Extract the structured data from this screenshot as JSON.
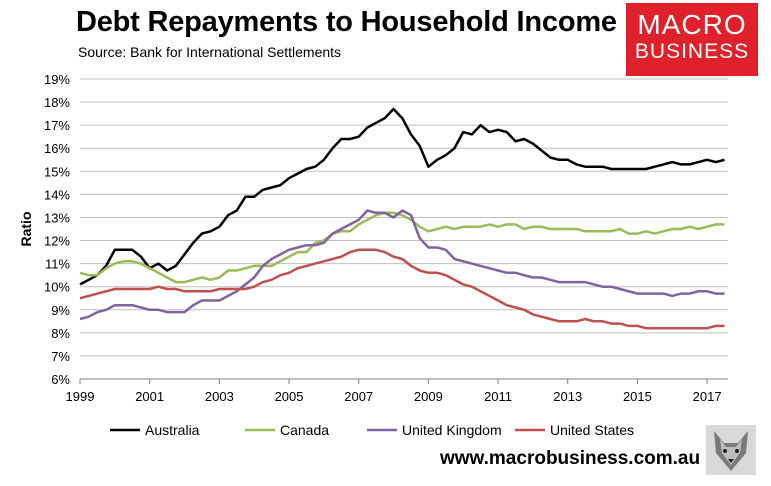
{
  "title": "Debt Repayments to Household Income",
  "subtitle": "Source: Bank for International Settlements",
  "logo": {
    "line1": "MACRO",
    "line2": "BUSINESS",
    "color": "#e0202a"
  },
  "footer_url": "www.macrobusiness.com.au",
  "chart_data": {
    "type": "line",
    "title": "Debt Repayments to Household Income",
    "xlabel": "",
    "ylabel": "Ratio",
    "xlim": [
      1999,
      2017.6
    ],
    "ylim": [
      6,
      19
    ],
    "x_ticks": [
      1999,
      2001,
      2003,
      2005,
      2007,
      2009,
      2011,
      2013,
      2015,
      2017
    ],
    "y_ticks": [
      "6%",
      "7%",
      "8%",
      "9%",
      "10%",
      "11%",
      "12%",
      "13%",
      "14%",
      "15%",
      "16%",
      "17%",
      "18%",
      "19%"
    ],
    "grid": "horizontal",
    "legend_position": "bottom",
    "series": [
      {
        "name": "Australia",
        "color": "#000000",
        "points": [
          [
            1999,
            10.1
          ],
          [
            1999.25,
            10.3
          ],
          [
            1999.5,
            10.5
          ],
          [
            1999.75,
            10.9
          ],
          [
            2000,
            11.6
          ],
          [
            2000.25,
            11.6
          ],
          [
            2000.5,
            11.6
          ],
          [
            2000.75,
            11.3
          ],
          [
            2001,
            10.8
          ],
          [
            2001.25,
            11.0
          ],
          [
            2001.5,
            10.7
          ],
          [
            2001.75,
            10.9
          ],
          [
            2002,
            11.4
          ],
          [
            2002.25,
            11.9
          ],
          [
            2002.5,
            12.3
          ],
          [
            2002.75,
            12.4
          ],
          [
            2003,
            12.6
          ],
          [
            2003.25,
            13.1
          ],
          [
            2003.5,
            13.3
          ],
          [
            2003.75,
            13.9
          ],
          [
            2004,
            13.9
          ],
          [
            2004.25,
            14.2
          ],
          [
            2004.5,
            14.3
          ],
          [
            2004.75,
            14.4
          ],
          [
            2005,
            14.7
          ],
          [
            2005.25,
            14.9
          ],
          [
            2005.5,
            15.1
          ],
          [
            2005.75,
            15.2
          ],
          [
            2006,
            15.5
          ],
          [
            2006.25,
            16.0
          ],
          [
            2006.5,
            16.4
          ],
          [
            2006.75,
            16.4
          ],
          [
            2007,
            16.5
          ],
          [
            2007.25,
            16.9
          ],
          [
            2007.5,
            17.1
          ],
          [
            2007.75,
            17.3
          ],
          [
            2008,
            17.7
          ],
          [
            2008.25,
            17.3
          ],
          [
            2008.5,
            16.6
          ],
          [
            2008.75,
            16.1
          ],
          [
            2009,
            15.2
          ],
          [
            2009.25,
            15.5
          ],
          [
            2009.5,
            15.7
          ],
          [
            2009.75,
            16.0
          ],
          [
            2010,
            16.7
          ],
          [
            2010.25,
            16.6
          ],
          [
            2010.5,
            17.0
          ],
          [
            2010.75,
            16.7
          ],
          [
            2011,
            16.8
          ],
          [
            2011.25,
            16.7
          ],
          [
            2011.5,
            16.3
          ],
          [
            2011.75,
            16.4
          ],
          [
            2012,
            16.2
          ],
          [
            2012.25,
            15.9
          ],
          [
            2012.5,
            15.6
          ],
          [
            2012.75,
            15.5
          ],
          [
            2013,
            15.5
          ],
          [
            2013.25,
            15.3
          ],
          [
            2013.5,
            15.2
          ],
          [
            2013.75,
            15.2
          ],
          [
            2014,
            15.2
          ],
          [
            2014.25,
            15.1
          ],
          [
            2014.5,
            15.1
          ],
          [
            2014.75,
            15.1
          ],
          [
            2015,
            15.1
          ],
          [
            2015.25,
            15.1
          ],
          [
            2015.5,
            15.2
          ],
          [
            2015.75,
            15.3
          ],
          [
            2016,
            15.4
          ],
          [
            2016.25,
            15.3
          ],
          [
            2016.5,
            15.3
          ],
          [
            2016.75,
            15.4
          ],
          [
            2017,
            15.5
          ],
          [
            2017.25,
            15.4
          ],
          [
            2017.5,
            15.5
          ]
        ]
      },
      {
        "name": "Canada",
        "color": "#9bbb59",
        "points": [
          [
            1999,
            10.6
          ],
          [
            1999.25,
            10.5
          ],
          [
            1999.5,
            10.5
          ],
          [
            1999.75,
            10.8
          ],
          [
            2000,
            11.0
          ],
          [
            2000.25,
            11.1
          ],
          [
            2000.5,
            11.1
          ],
          [
            2000.75,
            11.0
          ],
          [
            2001,
            10.8
          ],
          [
            2001.25,
            10.6
          ],
          [
            2001.5,
            10.4
          ],
          [
            2001.75,
            10.2
          ],
          [
            2002,
            10.2
          ],
          [
            2002.25,
            10.3
          ],
          [
            2002.5,
            10.4
          ],
          [
            2002.75,
            10.3
          ],
          [
            2003,
            10.4
          ],
          [
            2003.25,
            10.7
          ],
          [
            2003.5,
            10.7
          ],
          [
            2003.75,
            10.8
          ],
          [
            2004,
            10.9
          ],
          [
            2004.25,
            10.9
          ],
          [
            2004.5,
            10.9
          ],
          [
            2004.75,
            11.1
          ],
          [
            2005,
            11.3
          ],
          [
            2005.25,
            11.5
          ],
          [
            2005.5,
            11.5
          ],
          [
            2005.75,
            11.9
          ],
          [
            2006,
            12.0
          ],
          [
            2006.25,
            12.3
          ],
          [
            2006.5,
            12.4
          ],
          [
            2006.75,
            12.4
          ],
          [
            2007,
            12.7
          ],
          [
            2007.25,
            12.9
          ],
          [
            2007.5,
            13.1
          ],
          [
            2007.75,
            13.2
          ],
          [
            2008,
            13.2
          ],
          [
            2008.25,
            13.1
          ],
          [
            2008.5,
            12.9
          ],
          [
            2008.75,
            12.6
          ],
          [
            2009,
            12.4
          ],
          [
            2009.25,
            12.5
          ],
          [
            2009.5,
            12.6
          ],
          [
            2009.75,
            12.5
          ],
          [
            2010,
            12.6
          ],
          [
            2010.25,
            12.6
          ],
          [
            2010.5,
            12.6
          ],
          [
            2010.75,
            12.7
          ],
          [
            2011,
            12.6
          ],
          [
            2011.25,
            12.7
          ],
          [
            2011.5,
            12.7
          ],
          [
            2011.75,
            12.5
          ],
          [
            2012,
            12.6
          ],
          [
            2012.25,
            12.6
          ],
          [
            2012.5,
            12.5
          ],
          [
            2012.75,
            12.5
          ],
          [
            2013,
            12.5
          ],
          [
            2013.25,
            12.5
          ],
          [
            2013.5,
            12.4
          ],
          [
            2013.75,
            12.4
          ],
          [
            2014,
            12.4
          ],
          [
            2014.25,
            12.4
          ],
          [
            2014.5,
            12.5
          ],
          [
            2014.75,
            12.3
          ],
          [
            2015,
            12.3
          ],
          [
            2015.25,
            12.4
          ],
          [
            2015.5,
            12.3
          ],
          [
            2015.75,
            12.4
          ],
          [
            2016,
            12.5
          ],
          [
            2016.25,
            12.5
          ],
          [
            2016.5,
            12.6
          ],
          [
            2016.75,
            12.5
          ],
          [
            2017,
            12.6
          ],
          [
            2017.25,
            12.7
          ],
          [
            2017.5,
            12.7
          ]
        ]
      },
      {
        "name": "United Kingdom",
        "color": "#8064a2",
        "points": [
          [
            1999,
            8.6
          ],
          [
            1999.25,
            8.7
          ],
          [
            1999.5,
            8.9
          ],
          [
            1999.75,
            9.0
          ],
          [
            2000,
            9.2
          ],
          [
            2000.25,
            9.2
          ],
          [
            2000.5,
            9.2
          ],
          [
            2000.75,
            9.1
          ],
          [
            2001,
            9.0
          ],
          [
            2001.25,
            9.0
          ],
          [
            2001.5,
            8.9
          ],
          [
            2001.75,
            8.9
          ],
          [
            2002,
            8.9
          ],
          [
            2002.25,
            9.2
          ],
          [
            2002.5,
            9.4
          ],
          [
            2002.75,
            9.4
          ],
          [
            2003,
            9.4
          ],
          [
            2003.25,
            9.6
          ],
          [
            2003.5,
            9.8
          ],
          [
            2003.75,
            10.1
          ],
          [
            2004,
            10.4
          ],
          [
            2004.25,
            10.9
          ],
          [
            2004.5,
            11.2
          ],
          [
            2004.75,
            11.4
          ],
          [
            2005,
            11.6
          ],
          [
            2005.25,
            11.7
          ],
          [
            2005.5,
            11.8
          ],
          [
            2005.75,
            11.8
          ],
          [
            2006,
            11.9
          ],
          [
            2006.25,
            12.3
          ],
          [
            2006.5,
            12.5
          ],
          [
            2006.75,
            12.7
          ],
          [
            2007,
            12.9
          ],
          [
            2007.25,
            13.3
          ],
          [
            2007.5,
            13.2
          ],
          [
            2007.75,
            13.2
          ],
          [
            2008,
            13.0
          ],
          [
            2008.25,
            13.3
          ],
          [
            2008.5,
            13.1
          ],
          [
            2008.75,
            12.1
          ],
          [
            2009,
            11.7
          ],
          [
            2009.25,
            11.7
          ],
          [
            2009.5,
            11.6
          ],
          [
            2009.75,
            11.2
          ],
          [
            2010,
            11.1
          ],
          [
            2010.25,
            11.0
          ],
          [
            2010.5,
            10.9
          ],
          [
            2010.75,
            10.8
          ],
          [
            2011,
            10.7
          ],
          [
            2011.25,
            10.6
          ],
          [
            2011.5,
            10.6
          ],
          [
            2011.75,
            10.5
          ],
          [
            2012,
            10.4
          ],
          [
            2012.25,
            10.4
          ],
          [
            2012.5,
            10.3
          ],
          [
            2012.75,
            10.2
          ],
          [
            2013,
            10.2
          ],
          [
            2013.25,
            10.2
          ],
          [
            2013.5,
            10.2
          ],
          [
            2013.75,
            10.1
          ],
          [
            2014,
            10.0
          ],
          [
            2014.25,
            10.0
          ],
          [
            2014.5,
            9.9
          ],
          [
            2014.75,
            9.8
          ],
          [
            2015,
            9.7
          ],
          [
            2015.25,
            9.7
          ],
          [
            2015.5,
            9.7
          ],
          [
            2015.75,
            9.7
          ],
          [
            2016,
            9.6
          ],
          [
            2016.25,
            9.7
          ],
          [
            2016.5,
            9.7
          ],
          [
            2016.75,
            9.8
          ],
          [
            2017,
            9.8
          ],
          [
            2017.25,
            9.7
          ],
          [
            2017.5,
            9.7
          ]
        ]
      },
      {
        "name": "United States",
        "color": "#c0504d",
        "points": [
          [
            1999,
            9.5
          ],
          [
            1999.25,
            9.6
          ],
          [
            1999.5,
            9.7
          ],
          [
            1999.75,
            9.8
          ],
          [
            2000,
            9.9
          ],
          [
            2000.25,
            9.9
          ],
          [
            2000.5,
            9.9
          ],
          [
            2000.75,
            9.9
          ],
          [
            2001,
            9.9
          ],
          [
            2001.25,
            10.0
          ],
          [
            2001.5,
            9.9
          ],
          [
            2001.75,
            9.9
          ],
          [
            2002,
            9.8
          ],
          [
            2002.25,
            9.8
          ],
          [
            2002.5,
            9.8
          ],
          [
            2002.75,
            9.8
          ],
          [
            2003,
            9.9
          ],
          [
            2003.25,
            9.9
          ],
          [
            2003.5,
            9.9
          ],
          [
            2003.75,
            9.9
          ],
          [
            2004,
            10.0
          ],
          [
            2004.25,
            10.2
          ],
          [
            2004.5,
            10.3
          ],
          [
            2004.75,
            10.5
          ],
          [
            2005,
            10.6
          ],
          [
            2005.25,
            10.8
          ],
          [
            2005.5,
            10.9
          ],
          [
            2005.75,
            11.0
          ],
          [
            2006,
            11.1
          ],
          [
            2006.25,
            11.2
          ],
          [
            2006.5,
            11.3
          ],
          [
            2006.75,
            11.5
          ],
          [
            2007,
            11.6
          ],
          [
            2007.25,
            11.6
          ],
          [
            2007.5,
            11.6
          ],
          [
            2007.75,
            11.5
          ],
          [
            2008,
            11.3
          ],
          [
            2008.25,
            11.2
          ],
          [
            2008.5,
            10.9
          ],
          [
            2008.75,
            10.7
          ],
          [
            2009,
            10.6
          ],
          [
            2009.25,
            10.6
          ],
          [
            2009.5,
            10.5
          ],
          [
            2009.75,
            10.3
          ],
          [
            2010,
            10.1
          ],
          [
            2010.25,
            10.0
          ],
          [
            2010.5,
            9.8
          ],
          [
            2010.75,
            9.6
          ],
          [
            2011,
            9.4
          ],
          [
            2011.25,
            9.2
          ],
          [
            2011.5,
            9.1
          ],
          [
            2011.75,
            9.0
          ],
          [
            2012,
            8.8
          ],
          [
            2012.25,
            8.7
          ],
          [
            2012.5,
            8.6
          ],
          [
            2012.75,
            8.5
          ],
          [
            2013,
            8.5
          ],
          [
            2013.25,
            8.5
          ],
          [
            2013.5,
            8.6
          ],
          [
            2013.75,
            8.5
          ],
          [
            2014,
            8.5
          ],
          [
            2014.25,
            8.4
          ],
          [
            2014.5,
            8.4
          ],
          [
            2014.75,
            8.3
          ],
          [
            2015,
            8.3
          ],
          [
            2015.25,
            8.2
          ],
          [
            2015.5,
            8.2
          ],
          [
            2015.75,
            8.2
          ],
          [
            2016,
            8.2
          ],
          [
            2016.25,
            8.2
          ],
          [
            2016.5,
            8.2
          ],
          [
            2016.75,
            8.2
          ],
          [
            2017,
            8.2
          ],
          [
            2017.25,
            8.3
          ],
          [
            2017.5,
            8.3
          ]
        ]
      }
    ]
  }
}
